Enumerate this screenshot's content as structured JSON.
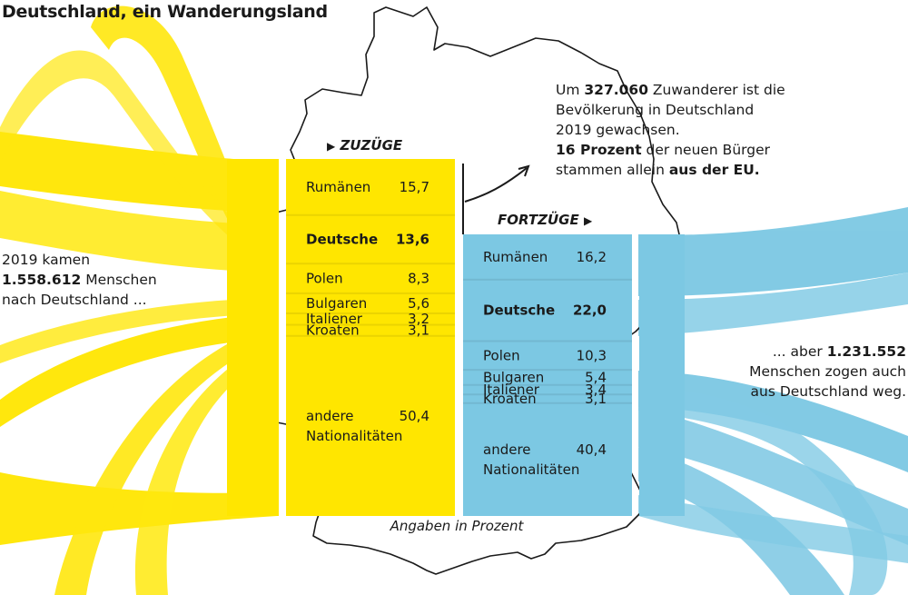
{
  "title": "Deutschland, ein Wanderungsland",
  "notes": {
    "left": {
      "line1": "2019 kamen",
      "number": "1.558.612",
      "line2_rest": " Menschen",
      "line3": "nach Deutschland ..."
    },
    "right_top": {
      "pre": "Um ",
      "number": "327.060",
      "line1_rest": " Zuwanderer ist die",
      "line2": "Bevölkerung in Deutschland",
      "line3": "2019 gewachsen.",
      "pct_bold": "16 Prozent",
      "line4_rest": " der neuen Bürger",
      "line5_pre": "stammen allein ",
      "line5_bold": "aus der EU."
    },
    "right_bottom": {
      "pre": "... aber ",
      "number": "1.231.552",
      "line2": "Menschen zogen auch",
      "line3": "aus Deutschland weg."
    }
  },
  "unit_label": "Angaben in Prozent",
  "colors": {
    "zuzuege": "#ffe600",
    "fortzuege": "#7cc8e3",
    "outline": "#1a1a1a"
  },
  "chart_data": [
    {
      "type": "bar",
      "name": "ZUZÜGE",
      "orientation": "stacked-column",
      "unit": "Prozent",
      "total": 1558612,
      "categories": [
        "Rumänen",
        "Deutsche",
        "Polen",
        "Bulgaren",
        "Italiener",
        "Kroaten",
        "andere Nationalitäten"
      ],
      "labels": [
        "Rumänen",
        "Deutsche",
        "Polen",
        "Bulgaren",
        "Italiener",
        "Kroaten",
        "andere|Nationalitäten"
      ],
      "values": [
        15.7,
        13.6,
        8.3,
        5.6,
        3.2,
        3.1,
        50.4
      ],
      "display": [
        "15,7",
        "13,6",
        "8,3",
        "5,6",
        "3,2",
        "3,1",
        "50,4"
      ],
      "highlight": "Deutsche"
    },
    {
      "type": "bar",
      "name": "FORTZÜGE",
      "orientation": "stacked-column",
      "unit": "Prozent",
      "total": 1231552,
      "categories": [
        "Rumänen",
        "Deutsche",
        "Polen",
        "Bulgaren",
        "Italiener",
        "Kroaten",
        "andere Nationalitäten"
      ],
      "labels": [
        "Rumänen",
        "Deutsche",
        "Polen",
        "Bulgaren",
        "Italiener",
        "Kroaten",
        "andere|Nationalitäten"
      ],
      "values": [
        16.2,
        22.0,
        10.3,
        5.4,
        3.4,
        3.1,
        40.4
      ],
      "display": [
        "16,2",
        "22,0",
        "10,3",
        "5,4",
        "3,4",
        "3,1",
        "40,4"
      ],
      "highlight": "Deutsche"
    }
  ]
}
